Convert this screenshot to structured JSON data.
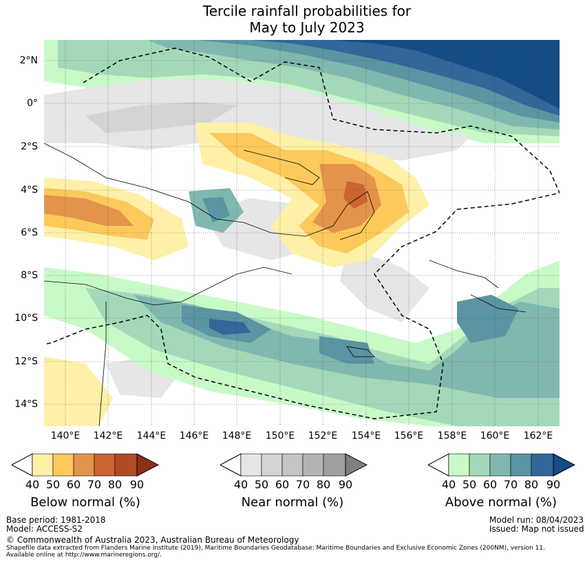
{
  "title_line1": "Tercile rainfall probabilities for",
  "title_line2": "May to July 2023",
  "map": {
    "lat_labels": [
      "2°N",
      "0°",
      "2°S",
      "4°S",
      "6°S",
      "8°S",
      "10°S",
      "12°S",
      "14°S"
    ],
    "lon_labels": [
      "140°E",
      "142°E",
      "144°E",
      "146°E",
      "148°E",
      "150°E",
      "152°E",
      "154°E",
      "156°E",
      "158°E",
      "160°E",
      "162°E"
    ],
    "colors": {
      "below": [
        "#fff0a8",
        "#fdc95c",
        "#e3944a",
        "#cb6531",
        "#b04b26",
        "#8c3017"
      ],
      "near": [
        "#e6e6e6",
        "#d4d4d4",
        "#c5c5c5",
        "#b4b4b4",
        "#a0a0a0",
        "#7f7f7f"
      ],
      "above": [
        "#c8fac8",
        "#a3d9b9",
        "#80b8af",
        "#5b94a3",
        "#336699",
        "#144c85"
      ]
    }
  },
  "legends": [
    {
      "title": "Below normal (%)",
      "ticks": [
        "40",
        "50",
        "60",
        "70",
        "80",
        "90"
      ]
    },
    {
      "title": "Near normal (%)",
      "ticks": [
        "40",
        "50",
        "60",
        "70",
        "80",
        "90"
      ]
    },
    {
      "title": "Above normal (%)",
      "ticks": [
        "40",
        "50",
        "60",
        "70",
        "80",
        "90"
      ]
    }
  ],
  "footer": {
    "base_period": "Base period: 1981-2018",
    "model": "Model: ACCESS-S2",
    "model_run": "Model run: 08/04/2023",
    "issued": "Issued: Map not issued",
    "copyright": "© Commonwealth of Australia 2023, Australian Bureau of Meteorology",
    "shapefile_line1": "Shapefile data extracted from Flanders Marine Institute (2019), Maritime Boundaries Geodatabase: Maritime Boundaries and Exclusive Economic Zones (200NM), version 11.",
    "shapefile_line2": "Available online at http://www.marineregions.org/."
  }
}
